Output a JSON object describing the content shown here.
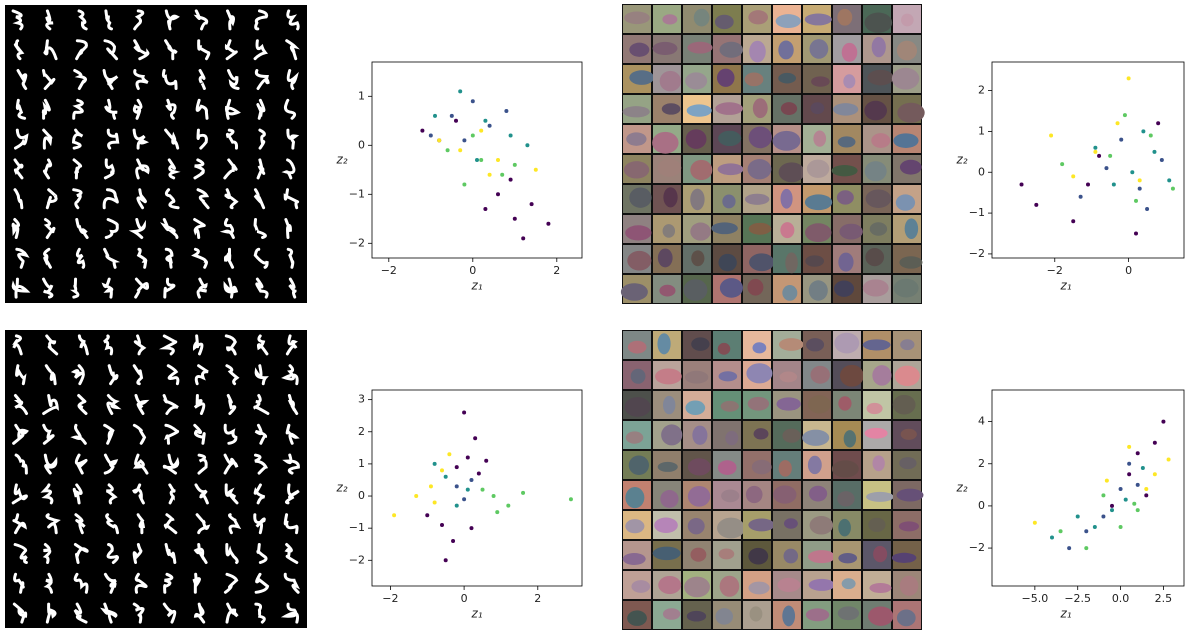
{
  "chart_data": [
    {
      "type": "scatter",
      "xlabel": "z₁",
      "ylabel": "z₂",
      "xlim": [
        -2.4,
        2.6
      ],
      "ylim": [
        -2.3,
        1.7
      ],
      "xticks": [
        {
          "value": -2,
          "label": "−2"
        },
        0,
        2
      ],
      "yticks": [
        {
          "value": -2,
          "label": "−2"
        },
        {
          "value": -1,
          "label": "−1"
        },
        0,
        1
      ],
      "series": [
        {
          "color": "#440154",
          "x": [
            0.6,
            1.0,
            1.4,
            0.9,
            1.8,
            0.3,
            -1.2,
            -0.8,
            -0.4,
            1.2
          ],
          "y": [
            -1.0,
            -1.5,
            -1.2,
            -0.7,
            -1.6,
            -1.3,
            0.3,
            0.1,
            0.5,
            -1.9
          ]
        },
        {
          "color": "#3b528b",
          "x": [
            -0.5,
            0.0,
            -1.0,
            0.4,
            -0.2,
            0.8
          ],
          "y": [
            0.6,
            0.9,
            0.2,
            0.4,
            0.1,
            0.7
          ]
        },
        {
          "color": "#21918c",
          "x": [
            -0.3,
            0.3,
            0.9,
            -0.9,
            0.1,
            1.3
          ],
          "y": [
            1.1,
            0.5,
            0.2,
            0.6,
            -0.3,
            0.0
          ]
        },
        {
          "color": "#5ec962",
          "x": [
            0.2,
            0.7,
            -0.6,
            1.0,
            0.0,
            -0.2
          ],
          "y": [
            -0.3,
            -0.6,
            -0.1,
            -0.4,
            0.2,
            -0.8
          ]
        },
        {
          "color": "#fde725",
          "x": [
            -0.3,
            0.2,
            0.6,
            -0.8,
            0.4,
            1.5
          ],
          "y": [
            -0.1,
            0.3,
            -0.3,
            0.1,
            -0.6,
            -0.5
          ]
        }
      ]
    },
    {
      "type": "scatter",
      "xlabel": "z₁",
      "ylabel": "z₂",
      "xlim": [
        -3.7,
        1.5
      ],
      "ylim": [
        -2.1,
        2.7
      ],
      "xticks": [
        {
          "value": -2,
          "label": "−2"
        },
        0
      ],
      "yticks": [
        {
          "value": -2,
          "label": "−2"
        },
        {
          "value": -1,
          "label": "−1"
        },
        0,
        1,
        2
      ],
      "series": [
        {
          "color": "#440154",
          "x": [
            -2.5,
            -1.5,
            -0.8,
            0.2,
            -1.1,
            0.8,
            -2.9
          ],
          "y": [
            -0.8,
            -1.2,
            0.4,
            -1.5,
            -0.3,
            1.2,
            -0.3
          ]
        },
        {
          "color": "#3b528b",
          "x": [
            -0.6,
            0.3,
            -0.2,
            0.9,
            -1.3,
            0.5
          ],
          "y": [
            0.1,
            -0.4,
            0.8,
            0.3,
            -0.6,
            -0.9
          ]
        },
        {
          "color": "#21918c",
          "x": [
            0.1,
            0.7,
            -0.4,
            1.1,
            0.4,
            -0.9
          ],
          "y": [
            0.0,
            0.5,
            -0.3,
            -0.2,
            1.0,
            0.6
          ]
        },
        {
          "color": "#5ec962",
          "x": [
            -0.5,
            0.2,
            -1.8,
            0.6,
            -0.1,
            1.2
          ],
          "y": [
            0.4,
            -0.7,
            0.2,
            0.9,
            1.4,
            -0.4
          ]
        },
        {
          "color": "#fde725",
          "x": [
            -0.9,
            -0.3,
            -1.5,
            0.3,
            -2.1,
            0.0
          ],
          "y": [
            0.5,
            1.2,
            -0.1,
            -0.2,
            0.9,
            2.3
          ]
        }
      ]
    },
    {
      "type": "scatter",
      "xlabel": "z₁",
      "ylabel": "z₂",
      "xlim": [
        -2.5,
        3.2
      ],
      "ylim": [
        -2.8,
        3.3
      ],
      "xticks": [
        {
          "value": -2,
          "label": "−2"
        },
        0,
        2
      ],
      "yticks": [
        {
          "value": -2,
          "label": "−2"
        },
        {
          "value": -1,
          "label": "−1"
        },
        0,
        1,
        2,
        3
      ],
      "series": [
        {
          "color": "#440154",
          "x": [
            0.1,
            0.3,
            0.6,
            0.0,
            0.4,
            -0.6,
            -0.3,
            -1.0,
            0.2,
            -0.5,
            -0.2
          ],
          "y": [
            1.2,
            1.8,
            1.1,
            2.6,
            0.7,
            -0.9,
            -1.4,
            -0.6,
            -1.0,
            -2.0,
            0.9
          ]
        },
        {
          "color": "#3b528b",
          "x": [
            -0.2,
            0.0,
            0.2
          ],
          "y": [
            0.3,
            -0.1,
            0.5
          ]
        },
        {
          "color": "#21918c",
          "x": [
            -0.5,
            -0.2,
            -0.8,
            0.1
          ],
          "y": [
            0.6,
            -0.3,
            1.0,
            0.2
          ]
        },
        {
          "color": "#5ec962",
          "x": [
            0.8,
            1.2,
            0.5,
            1.6,
            0.9,
            2.9
          ],
          "y": [
            0.0,
            -0.3,
            0.2,
            0.1,
            -0.5,
            -0.1
          ]
        },
        {
          "color": "#fde725",
          "x": [
            -0.9,
            -0.6,
            -1.3,
            -0.4,
            -0.8,
            -1.9
          ],
          "y": [
            0.3,
            0.8,
            0.0,
            1.3,
            -0.2,
            -0.6
          ]
        }
      ]
    },
    {
      "type": "scatter",
      "xlabel": "z₁",
      "ylabel": "z₂",
      "xlim": [
        -7.5,
        3.7
      ],
      "ylim": [
        -3.8,
        5.5
      ],
      "xticks": [
        {
          "value": -5,
          "label": "−5.0"
        },
        {
          "value": -2.5,
          "label": "−2.5"
        },
        {
          "value": 0,
          "label": "0.0"
        },
        2.5
      ],
      "yticks": [
        {
          "value": -2,
          "label": "−2"
        },
        0,
        2,
        4
      ],
      "series": [
        {
          "color": "#440154",
          "x": [
            0.5,
            1.0,
            2.0,
            -0.5,
            1.5,
            2.5
          ],
          "y": [
            1.5,
            2.5,
            3.0,
            0.0,
            0.5,
            4.0
          ]
        },
        {
          "color": "#3b528b",
          "x": [
            -1.0,
            0.0,
            -2.0,
            1.0,
            -3.0,
            0.5
          ],
          "y": [
            -0.5,
            0.8,
            -1.2,
            1.0,
            -2.0,
            2.0
          ]
        },
        {
          "color": "#21918c",
          "x": [
            -1.5,
            -0.5,
            0.3,
            -2.5,
            1.3,
            -4.0
          ],
          "y": [
            -1.0,
            -0.2,
            0.3,
            -0.5,
            1.8,
            -1.5
          ]
        },
        {
          "color": "#5ec962",
          "x": [
            -2.0,
            0.0,
            -1.0,
            1.0,
            -3.5,
            0.8
          ],
          "y": [
            -2.0,
            -1.0,
            0.5,
            -0.2,
            -1.2,
            0.1
          ]
        },
        {
          "color": "#fde725",
          "x": [
            1.5,
            2.0,
            -0.8,
            0.5,
            2.8,
            -5.0
          ],
          "y": [
            0.8,
            1.5,
            1.2,
            2.8,
            2.2,
            -0.8
          ]
        }
      ]
    }
  ]
}
